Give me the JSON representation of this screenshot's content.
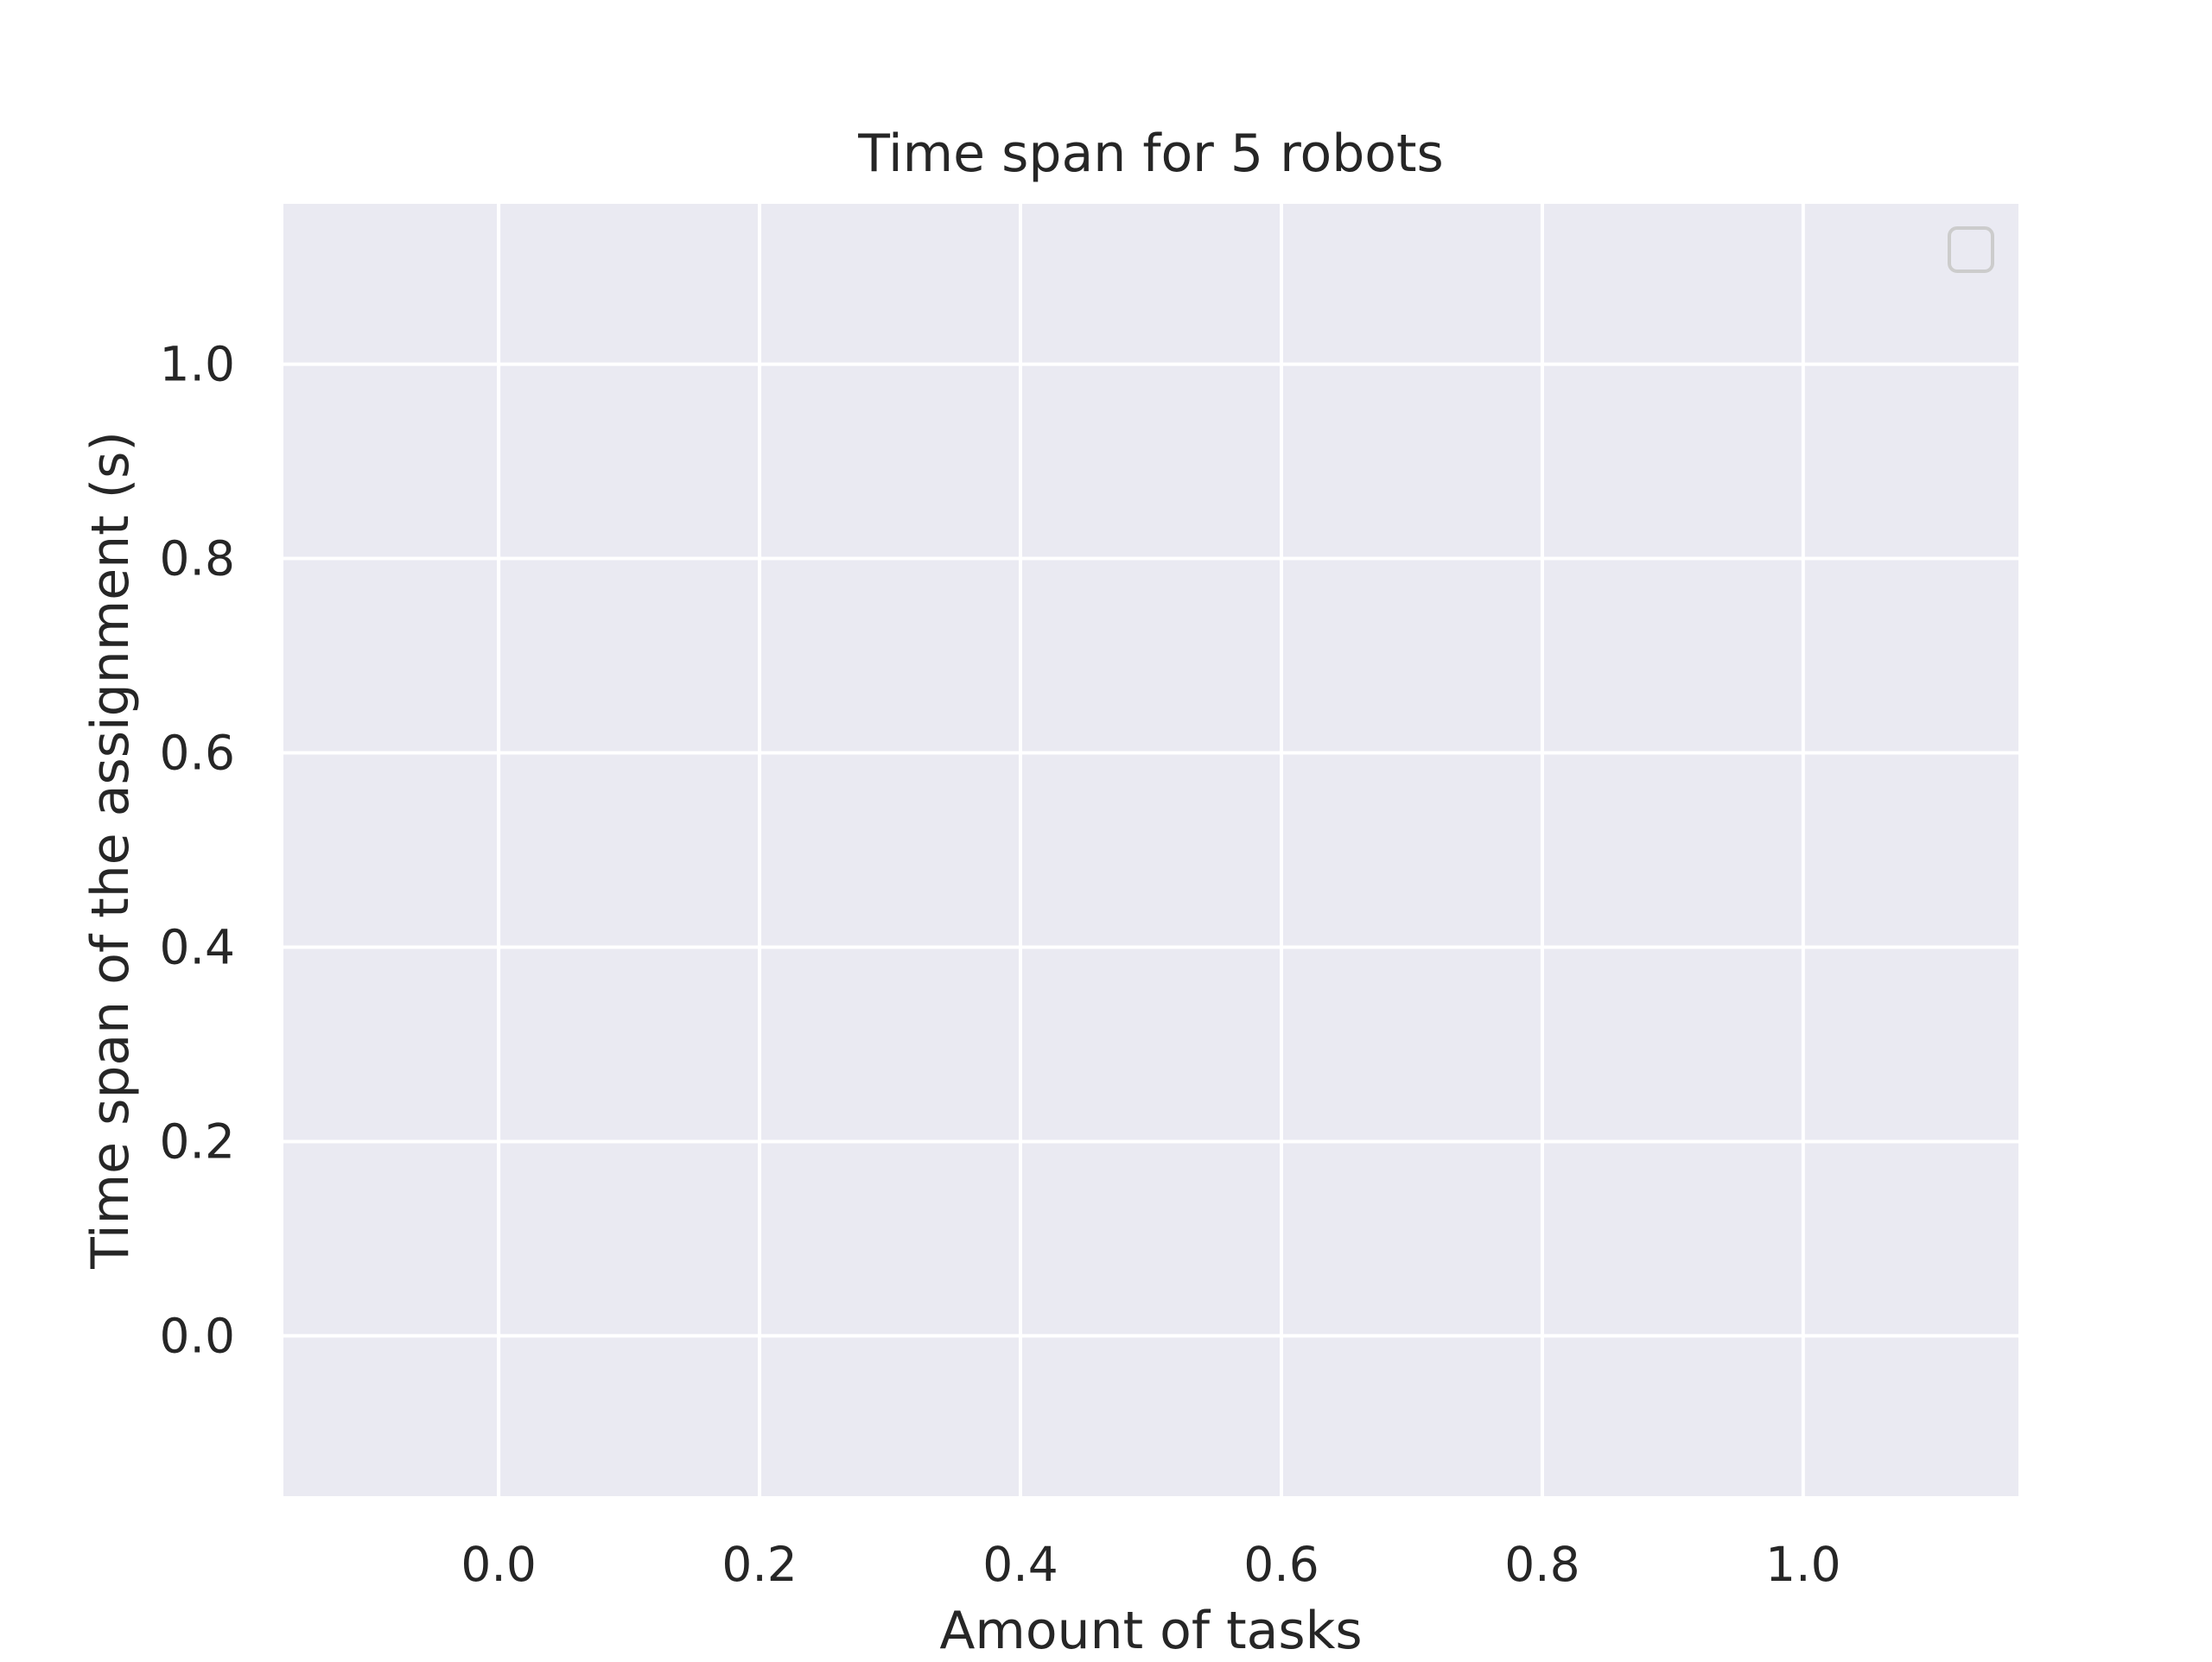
{
  "chart_data": {
    "type": "line",
    "title": "Time span for 5 robots",
    "xlabel": "Amount of tasks",
    "ylabel": "Time span of the assignment (s)",
    "xlim": [
      -0.165,
      1.165
    ],
    "ylim": [
      -0.165,
      1.165
    ],
    "x_ticks": [
      "0.0",
      "0.2",
      "0.4",
      "0.6",
      "0.8",
      "1.0"
    ],
    "y_ticks": [
      "0.0",
      "0.2",
      "0.4",
      "0.6",
      "0.8",
      "1.0"
    ],
    "series": [],
    "grid": true,
    "legend": {
      "location": "top-right",
      "entries": []
    },
    "colors": {
      "plot_background": "#eaeaf2",
      "grid": "#ffffff",
      "text": "#262626",
      "legend_border": "#cccccc"
    }
  }
}
